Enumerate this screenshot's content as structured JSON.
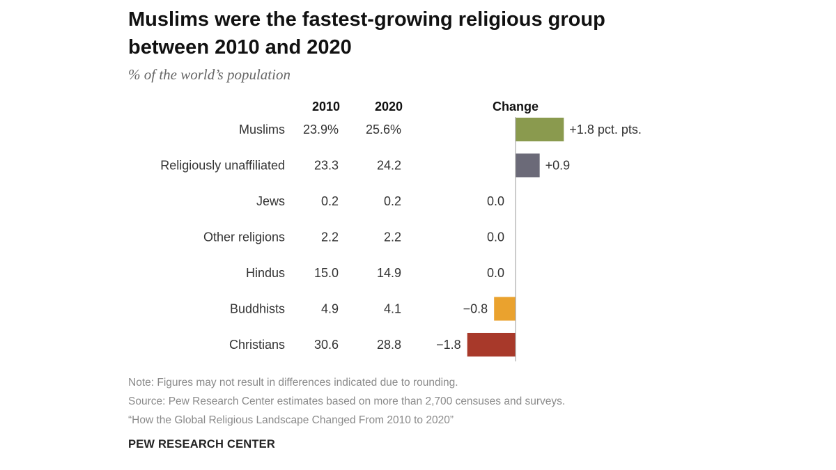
{
  "header": {
    "title_line1": "Muslims were the fastest-growing religious group",
    "title_line2": "between 2010 and 2020",
    "subtitle": "% of the world’s population"
  },
  "chart_data": {
    "type": "bar",
    "orientation": "horizontal",
    "title": "Muslims were the fastest-growing religious group between 2010 and 2020",
    "subtitle": "% of the world’s population",
    "columns": {
      "y2010": "2010",
      "y2020": "2020",
      "change": "Change"
    },
    "categories": [
      "Muslims",
      "Religiously unaffiliated",
      "Jews",
      "Other religions",
      "Hindus",
      "Buddhists",
      "Christians"
    ],
    "y2010_labels": [
      "23.9%",
      "23.3",
      "0.2",
      "2.2",
      "15.0",
      "4.9",
      "30.6"
    ],
    "y2020_labels": [
      "25.6%",
      "24.2",
      "0.2",
      "2.2",
      "14.9",
      "4.1",
      "28.8"
    ],
    "change_values": [
      1.8,
      0.9,
      0.0,
      0.0,
      0.0,
      -0.8,
      -1.8
    ],
    "change_labels": [
      "+1.8 pct. pts.",
      "+0.9",
      "0.0",
      "0.0",
      "0.0",
      "−0.8",
      "−1.8"
    ],
    "bar_colors": [
      "#8a9a4e",
      "#6b6a78",
      "#999999",
      "#999999",
      "#999999",
      "#eaa22e",
      "#a8392a"
    ],
    "xlim": [
      -1.8,
      1.8
    ]
  },
  "footer": {
    "note": "Note: Figures may not result in differences indicated due to rounding.",
    "source": "Source: Pew Research Center estimates based on more than 2,700 censuses and surveys.",
    "report": "“How the Global Religious Landscape Changed From 2010 to 2020”",
    "brand": "PEW RESEARCH CENTER"
  }
}
